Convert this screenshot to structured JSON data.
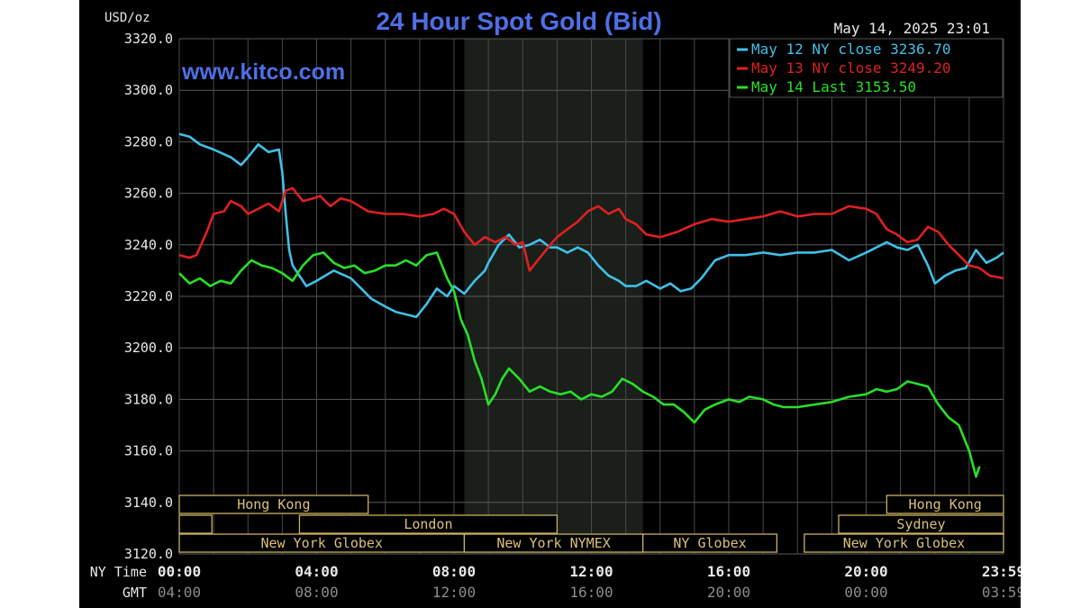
{
  "chart_data": {
    "type": "line",
    "title": "24 Hour Spot Gold (Bid)",
    "watermark": "www.kitco.com",
    "timestamp": "May 14, 2025 23:01",
    "ylabel": "USD/oz",
    "ylim": [
      3120,
      3320
    ],
    "xlim": [
      0,
      24
    ],
    "yticks": [
      3120,
      3140,
      3160,
      3180,
      3200,
      3220,
      3240,
      3260,
      3280,
      3300,
      3320
    ],
    "ytick_labels": [
      "3120.0",
      "3140.0",
      "3160.0",
      "3180.0",
      "3200.0",
      "3220.0",
      "3240.0",
      "3260.0",
      "3280.0",
      "3300.0",
      "3320.0"
    ],
    "grid": true,
    "legend_position": "top-right",
    "highlight_range": [
      8.3,
      13.5
    ],
    "x_axis_rows": [
      {
        "label": "NY Time",
        "color": "#e8e8e8",
        "ticks": [
          {
            "x": 0,
            "label": "00:00"
          },
          {
            "x": 4,
            "label": "04:00"
          },
          {
            "x": 8,
            "label": "08:00"
          },
          {
            "x": 12,
            "label": "12:00"
          },
          {
            "x": 16,
            "label": "16:00"
          },
          {
            "x": 20,
            "label": "20:00"
          },
          {
            "x": 24,
            "label": "23:59"
          }
        ]
      },
      {
        "label": "GMT",
        "color": "#8c8c8c",
        "ticks": [
          {
            "x": 0,
            "label": "04:00"
          },
          {
            "x": 4,
            "label": "08:00"
          },
          {
            "x": 8,
            "label": "12:00"
          },
          {
            "x": 12,
            "label": "16:00"
          },
          {
            "x": 16,
            "label": "20:00"
          },
          {
            "x": 20,
            "label": "00:00"
          },
          {
            "x": 24,
            "label": "03:59"
          }
        ]
      }
    ],
    "sessions": [
      {
        "label": "Hong Kong",
        "row": 0,
        "start": 0,
        "end": 5.5
      },
      {
        "label": "Hong Kong",
        "row": 0,
        "start": 20.6,
        "end": 24
      },
      {
        "label": "",
        "row": 1,
        "start": 0,
        "end": 0.95
      },
      {
        "label": "London",
        "row": 1,
        "start": 3.5,
        "end": 11
      },
      {
        "label": "Sydney",
        "row": 1,
        "start": 19.2,
        "end": 24
      },
      {
        "label": "New York Globex",
        "row": 2,
        "start": 0,
        "end": 8.3
      },
      {
        "label": "New York NYMEX",
        "row": 2,
        "start": 8.3,
        "end": 13.5
      },
      {
        "label": "NY Globex",
        "row": 2,
        "start": 13.5,
        "end": 17.4
      },
      {
        "label": "New York Globex",
        "row": 2,
        "start": 18.2,
        "end": 24
      }
    ],
    "series": [
      {
        "name": "May 12 NY close 3236.70",
        "color": "#40c0e8",
        "x": [
          0,
          0.3,
          0.6,
          1.0,
          1.5,
          1.8,
          2.0,
          2.3,
          2.6,
          2.9,
          3.0,
          3.1,
          3.2,
          3.3,
          3.5,
          3.7,
          4.0,
          4.5,
          5.0,
          5.3,
          5.6,
          6.0,
          6.3,
          6.6,
          6.9,
          7.2,
          7.5,
          7.8,
          8.0,
          8.3,
          8.6,
          8.9,
          9.0,
          9.3,
          9.6,
          9.9,
          10.2,
          10.5,
          10.8,
          11.0,
          11.3,
          11.6,
          11.9,
          12.2,
          12.5,
          12.8,
          13.0,
          13.3,
          13.6,
          14.0,
          14.3,
          14.6,
          14.9,
          15.2,
          15.6,
          16.0,
          16.5,
          17.0,
          17.5,
          18.0,
          18.5,
          19.0,
          19.5,
          20.0,
          20.3,
          20.6,
          20.9,
          21.2,
          21.5,
          21.8,
          22.0,
          22.3,
          22.6,
          22.9,
          23.2,
          23.5,
          23.8,
          24.0
        ],
        "values": [
          3283,
          3282,
          3279,
          3277,
          3274,
          3271,
          3274,
          3279,
          3276,
          3277,
          3268,
          3252,
          3238,
          3232,
          3228,
          3224,
          3226,
          3230,
          3227,
          3223,
          3219,
          3216,
          3214,
          3213,
          3212,
          3217,
          3223,
          3220,
          3224,
          3221,
          3226,
          3230,
          3233,
          3240,
          3244,
          3239,
          3240,
          3242,
          3239,
          3239,
          3237,
          3239,
          3237,
          3232,
          3228,
          3226,
          3224,
          3224,
          3226,
          3223,
          3225,
          3222,
          3223,
          3227,
          3234,
          3236,
          3236,
          3237,
          3236,
          3237,
          3237,
          3238,
          3234,
          3237,
          3239,
          3241,
          3239,
          3238,
          3240,
          3232,
          3225,
          3228,
          3230,
          3231,
          3238,
          3233,
          3235,
          3237
        ]
      },
      {
        "name": "May 13 NY close 3249.20",
        "color": "#e02020",
        "x": [
          0,
          0.3,
          0.5,
          0.8,
          1.0,
          1.3,
          1.5,
          1.8,
          2.0,
          2.3,
          2.6,
          2.9,
          3.1,
          3.3,
          3.6,
          3.9,
          4.1,
          4.4,
          4.7,
          5.0,
          5.5,
          6.0,
          6.5,
          7.0,
          7.4,
          7.7,
          8.0,
          8.3,
          8.6,
          8.9,
          9.2,
          9.5,
          9.8,
          10.0,
          10.2,
          10.5,
          10.8,
          11.0,
          11.3,
          11.6,
          11.9,
          12.2,
          12.5,
          12.8,
          13.0,
          13.3,
          13.6,
          14.0,
          14.5,
          15.0,
          15.5,
          16.0,
          16.5,
          17.0,
          17.5,
          18.0,
          18.5,
          19.0,
          19.5,
          20.0,
          20.3,
          20.6,
          20.9,
          21.2,
          21.5,
          21.8,
          22.1,
          22.4,
          22.7,
          23.0,
          23.3,
          23.6,
          24.0
        ],
        "values": [
          3236,
          3235,
          3236,
          3245,
          3252,
          3253,
          3257,
          3255,
          3252,
          3254,
          3256,
          3253,
          3261,
          3262,
          3257,
          3258,
          3259,
          3255,
          3258,
          3257,
          3253,
          3252,
          3252,
          3251,
          3252,
          3254,
          3252,
          3245,
          3240,
          3243,
          3241,
          3243,
          3240,
          3241,
          3230,
          3235,
          3240,
          3243,
          3246,
          3249,
          3253,
          3255,
          3252,
          3254,
          3250,
          3248,
          3244,
          3243,
          3245,
          3248,
          3250,
          3249,
          3250,
          3251,
          3253,
          3251,
          3252,
          3252,
          3255,
          3254,
          3252,
          3246,
          3244,
          3241,
          3242,
          3247,
          3245,
          3240,
          3236,
          3232,
          3231,
          3228,
          3227
        ]
      },
      {
        "name": "May 14 Last 3153.50",
        "color": "#28e028",
        "x": [
          0,
          0.3,
          0.6,
          0.9,
          1.2,
          1.5,
          1.8,
          2.1,
          2.4,
          2.7,
          3.0,
          3.3,
          3.6,
          3.9,
          4.2,
          4.5,
          4.8,
          5.1,
          5.4,
          5.7,
          6.0,
          6.3,
          6.6,
          6.9,
          7.2,
          7.5,
          7.8,
          8.0,
          8.2,
          8.4,
          8.6,
          8.8,
          9.0,
          9.2,
          9.4,
          9.6,
          9.9,
          10.2,
          10.5,
          10.8,
          11.1,
          11.4,
          11.7,
          12.0,
          12.3,
          12.6,
          12.9,
          13.2,
          13.5,
          13.8,
          14.1,
          14.4,
          14.7,
          15.0,
          15.3,
          15.6,
          16.0,
          16.3,
          16.6,
          17.0,
          17.3,
          17.6,
          18.0,
          18.5,
          19.0,
          19.5,
          20.0,
          20.3,
          20.6,
          20.9,
          21.2,
          21.5,
          21.8,
          22.1,
          22.4,
          22.7,
          23.0,
          23.2,
          23.3
        ],
        "values": [
          3229,
          3225,
          3227,
          3224,
          3226,
          3225,
          3230,
          3234,
          3232,
          3231,
          3229,
          3226,
          3232,
          3236,
          3237,
          3233,
          3231,
          3232,
          3229,
          3230,
          3232,
          3232,
          3234,
          3232,
          3236,
          3237,
          3227,
          3222,
          3211,
          3205,
          3195,
          3188,
          3178,
          3182,
          3188,
          3192,
          3188,
          3183,
          3185,
          3183,
          3182,
          3183,
          3180,
          3182,
          3181,
          3183,
          3188,
          3186,
          3183,
          3181,
          3178,
          3178,
          3175,
          3171,
          3176,
          3178,
          3180,
          3179,
          3181,
          3180,
          3178,
          3177,
          3177,
          3178,
          3179,
          3181,
          3182,
          3184,
          3183,
          3184,
          3187,
          3186,
          3185,
          3178,
          3173,
          3170,
          3160,
          3150,
          3154
        ]
      }
    ]
  }
}
